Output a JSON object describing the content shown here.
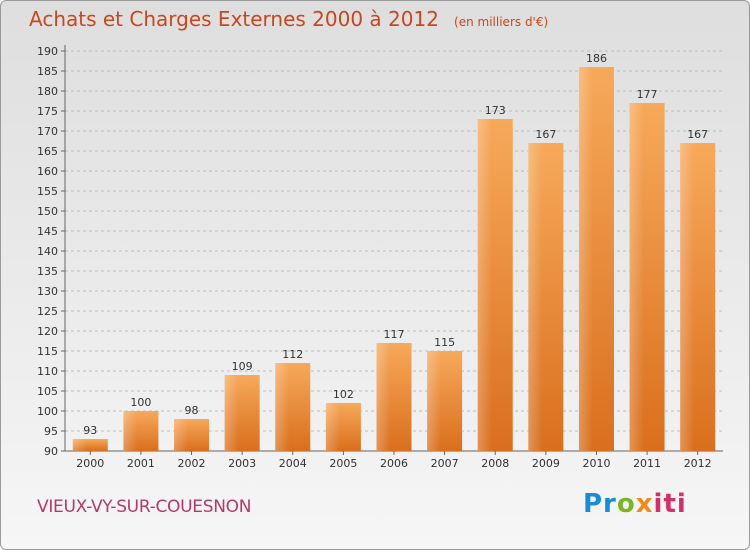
{
  "title": "Achats et Charges Externes 2000 à 2012",
  "subtitle": "(en milliers d'€)",
  "commune": "VIEUX-VY-SUR-COUESNON",
  "logo": {
    "text": "Proxiti",
    "colors": [
      "#1b8bd6",
      "#7bb428",
      "#f08a1c",
      "#d2306c"
    ]
  },
  "colors": {
    "title": "#c8471e",
    "commune": "#b4396a",
    "bar_light": "#f7a95a",
    "bar_dark": "#d96f1e",
    "grid": "#bdbdbd"
  },
  "chart_data": {
    "type": "bar",
    "title": "Achats et Charges Externes 2000 à 2012",
    "subtitle": "(en milliers d'€)",
    "xlabel": "",
    "ylabel": "",
    "categories": [
      "2000",
      "2001",
      "2002",
      "2003",
      "2004",
      "2005",
      "2006",
      "2007",
      "2008",
      "2009",
      "2010",
      "2011",
      "2012"
    ],
    "values": [
      93,
      100,
      98,
      109,
      112,
      102,
      117,
      115,
      173,
      167,
      186,
      177,
      167
    ],
    "ylim": [
      90,
      190
    ],
    "ytick_step": 5,
    "grid": "horizontal dashed",
    "legend": "none",
    "data_labels": true
  }
}
